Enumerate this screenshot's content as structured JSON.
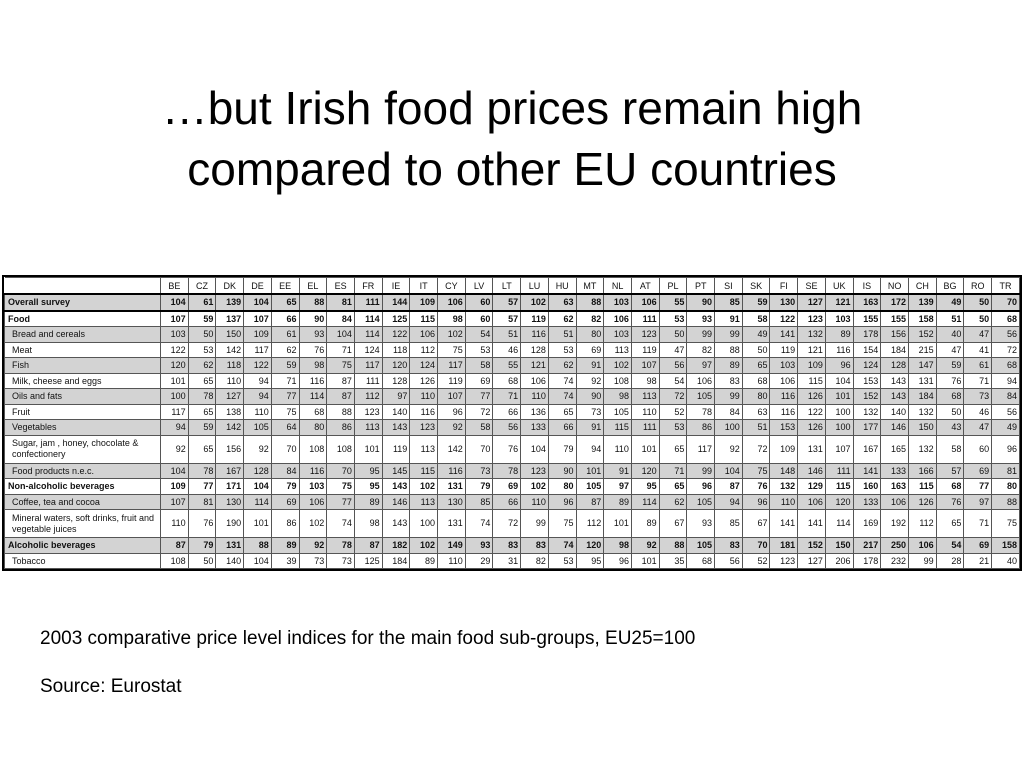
{
  "title": {
    "line1": "…but Irish food prices remain high",
    "line2": "compared to other EU countries"
  },
  "table": {
    "columns": [
      "BE",
      "CZ",
      "DK",
      "DE",
      "EE",
      "EL",
      "ES",
      "FR",
      "IE",
      "IT",
      "CY",
      "LV",
      "LT",
      "LU",
      "HU",
      "MT",
      "NL",
      "AT",
      "PL",
      "PT",
      "SI",
      "SK",
      "FI",
      "SE",
      "UK",
      "IS",
      "NO",
      "CH",
      "BG",
      "RO",
      "TR"
    ],
    "rows": [
      {
        "label": "Overall survey",
        "shade": true,
        "bold": true,
        "values": [
          104,
          61,
          139,
          104,
          65,
          88,
          81,
          111,
          144,
          109,
          106,
          60,
          57,
          102,
          63,
          88,
          103,
          106,
          55,
          90,
          85,
          59,
          130,
          127,
          121,
          163,
          172,
          139,
          49,
          50,
          70
        ]
      },
      {
        "label": "Food",
        "shade": false,
        "bold": true,
        "values": [
          107,
          59,
          137,
          107,
          66,
          90,
          84,
          114,
          125,
          115,
          98,
          60,
          57,
          119,
          62,
          82,
          106,
          111,
          53,
          93,
          91,
          58,
          122,
          123,
          103,
          155,
          155,
          158,
          51,
          50,
          68
        ]
      },
      {
        "label": "Bread and cereals",
        "shade": true,
        "bold": false,
        "values": [
          103,
          50,
          150,
          109,
          61,
          93,
          104,
          114,
          122,
          106,
          102,
          54,
          51,
          116,
          51,
          80,
          103,
          123,
          50,
          99,
          99,
          49,
          141,
          132,
          89,
          178,
          156,
          152,
          40,
          47,
          56
        ]
      },
      {
        "label": "Meat",
        "shade": false,
        "bold": false,
        "values": [
          122,
          53,
          142,
          117,
          62,
          76,
          71,
          124,
          118,
          112,
          75,
          53,
          46,
          128,
          53,
          69,
          113,
          119,
          47,
          82,
          88,
          50,
          119,
          121,
          116,
          154,
          184,
          215,
          47,
          41,
          72
        ]
      },
      {
        "label": "Fish",
        "shade": true,
        "bold": false,
        "values": [
          120,
          62,
          118,
          122,
          59,
          98,
          75,
          117,
          120,
          124,
          117,
          58,
          55,
          121,
          62,
          91,
          102,
          107,
          56,
          97,
          89,
          65,
          103,
          109,
          96,
          124,
          128,
          147,
          59,
          61,
          68
        ]
      },
      {
        "label": "Milk, cheese and eggs",
        "shade": false,
        "bold": false,
        "values": [
          101,
          65,
          110,
          94,
          71,
          116,
          87,
          111,
          128,
          126,
          119,
          69,
          68,
          106,
          74,
          92,
          108,
          98,
          54,
          106,
          83,
          68,
          106,
          115,
          104,
          153,
          143,
          131,
          76,
          71,
          94
        ]
      },
      {
        "label": "Oils and fats",
        "shade": true,
        "bold": false,
        "values": [
          100,
          78,
          127,
          94,
          77,
          114,
          87,
          112,
          97,
          110,
          107,
          77,
          71,
          110,
          74,
          90,
          98,
          113,
          72,
          105,
          99,
          80,
          116,
          126,
          101,
          152,
          143,
          184,
          68,
          73,
          84
        ]
      },
      {
        "label": "Fruit",
        "shade": false,
        "bold": false,
        "values": [
          117,
          65,
          138,
          110,
          75,
          68,
          88,
          123,
          140,
          116,
          96,
          72,
          66,
          136,
          65,
          73,
          105,
          110,
          52,
          78,
          84,
          63,
          116,
          122,
          100,
          132,
          140,
          132,
          50,
          46,
          56
        ]
      },
      {
        "label": "Vegetables",
        "shade": true,
        "bold": false,
        "values": [
          94,
          59,
          142,
          105,
          64,
          80,
          86,
          113,
          143,
          123,
          92,
          58,
          56,
          133,
          66,
          91,
          115,
          111,
          53,
          86,
          100,
          51,
          153,
          126,
          100,
          177,
          146,
          150,
          43,
          47,
          49
        ]
      },
      {
        "label": "Sugar, jam , honey, chocolate & confectionery",
        "shade": false,
        "bold": false,
        "tall": true,
        "values": [
          92,
          65,
          156,
          92,
          70,
          108,
          108,
          101,
          119,
          113,
          142,
          70,
          76,
          104,
          79,
          94,
          110,
          101,
          65,
          117,
          92,
          72,
          109,
          131,
          107,
          167,
          165,
          132,
          58,
          60,
          96
        ]
      },
      {
        "label": "Food products n.e.c.",
        "shade": true,
        "bold": false,
        "values": [
          104,
          78,
          167,
          128,
          84,
          116,
          70,
          95,
          145,
          115,
          116,
          73,
          78,
          123,
          90,
          101,
          91,
          120,
          71,
          99,
          104,
          75,
          148,
          146,
          111,
          141,
          133,
          166,
          57,
          69,
          81
        ]
      },
      {
        "label": "Non-alcoholic beverages",
        "shade": false,
        "bold": true,
        "values": [
          109,
          77,
          171,
          104,
          79,
          103,
          75,
          95,
          143,
          102,
          131,
          79,
          69,
          102,
          80,
          105,
          97,
          95,
          65,
          96,
          87,
          76,
          132,
          129,
          115,
          160,
          163,
          115,
          68,
          77,
          80
        ]
      },
      {
        "label": "Coffee, tea and cocoa",
        "shade": true,
        "bold": false,
        "values": [
          107,
          81,
          130,
          114,
          69,
          106,
          77,
          89,
          146,
          113,
          130,
          85,
          66,
          110,
          96,
          87,
          89,
          114,
          62,
          105,
          94,
          96,
          110,
          106,
          120,
          133,
          106,
          126,
          76,
          97,
          88
        ]
      },
      {
        "label": "Mineral waters, soft drinks, fruit and vegetable juices",
        "shade": false,
        "bold": false,
        "tall": true,
        "values": [
          110,
          76,
          190,
          101,
          86,
          102,
          74,
          98,
          143,
          100,
          131,
          74,
          72,
          99,
          75,
          112,
          101,
          89,
          67,
          93,
          85,
          67,
          141,
          141,
          114,
          169,
          192,
          112,
          65,
          71,
          75
        ]
      },
      {
        "label": "Alcoholic beverages",
        "shade": true,
        "bold": true,
        "values": [
          87,
          79,
          131,
          88,
          89,
          92,
          78,
          87,
          182,
          102,
          149,
          93,
          83,
          83,
          74,
          120,
          98,
          92,
          88,
          105,
          83,
          70,
          181,
          152,
          150,
          217,
          250,
          106,
          54,
          69,
          158
        ]
      },
      {
        "label": "Tobacco",
        "shade": false,
        "bold": false,
        "values": [
          108,
          50,
          140,
          104,
          39,
          73,
          73,
          125,
          184,
          89,
          110,
          29,
          31,
          82,
          53,
          95,
          96,
          101,
          35,
          68,
          56,
          52,
          123,
          127,
          206,
          178,
          232,
          99,
          28,
          21,
          40
        ]
      }
    ]
  },
  "caption": "2003 comparative price level indices for the main food sub-groups, EU25=100",
  "source": "Source: Eurostat"
}
